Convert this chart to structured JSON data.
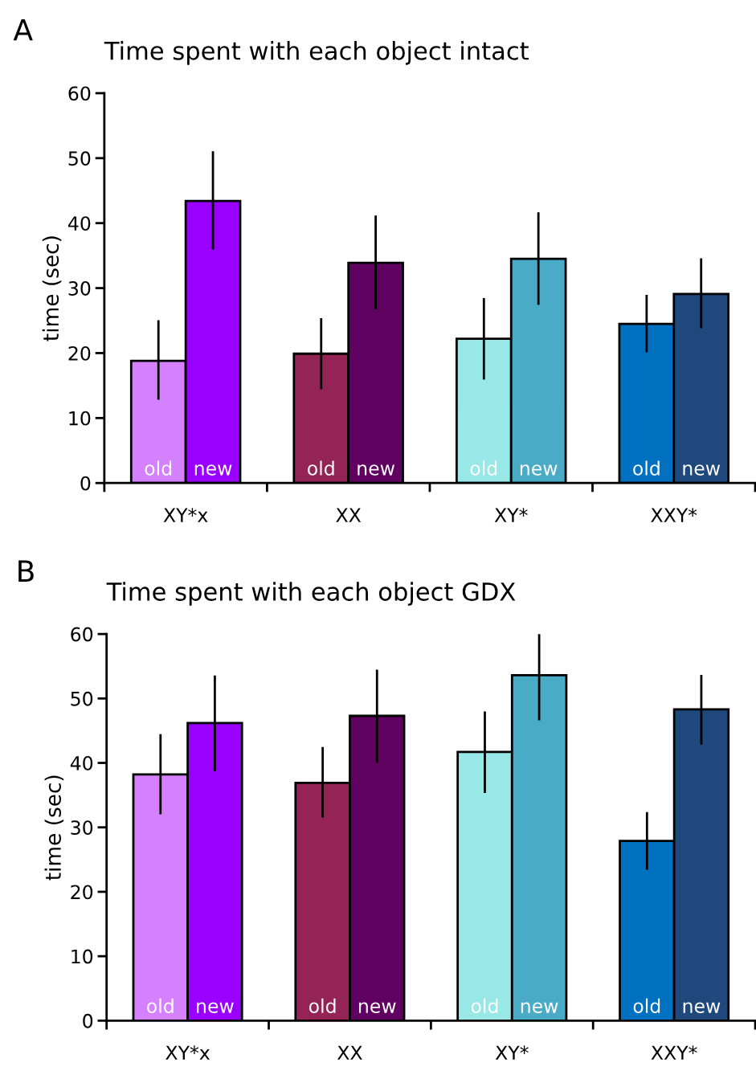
{
  "chart_data": [
    {
      "type": "bar",
      "title": "Time spent with each object intact",
      "ylabel": "time (sec)",
      "annotations": [
        "A"
      ],
      "categories": [
        "XY*x",
        "XX",
        "XY*",
        "XXY*"
      ],
      "ylim": [
        0,
        60
      ],
      "yticks": [
        0,
        10,
        20,
        30,
        40,
        50,
        60
      ],
      "grid": false,
      "legend": false,
      "series": [
        {
          "name": "old",
          "colors": [
            "#d580ff",
            "#952456",
            "#99e8e8",
            "#0070c0"
          ],
          "values": [
            18.8,
            19.9,
            22.2,
            24.5
          ],
          "errors": [
            [
              13.0,
              24.9
            ],
            [
              14.6,
              25.2
            ],
            [
              16.1,
              28.3
            ],
            [
              20.3,
              28.8
            ]
          ]
        },
        {
          "name": "new",
          "colors": [
            "#9900ff",
            "#600060",
            "#4aabc6",
            "#1f497d"
          ],
          "values": [
            43.4,
            33.9,
            34.5,
            29.1
          ],
          "errors": [
            [
              36.1,
              50.9
            ],
            [
              26.9,
              41.0
            ],
            [
              27.6,
              41.5
            ],
            [
              24.0,
              34.4
            ]
          ]
        }
      ]
    },
    {
      "type": "bar",
      "title": "Time spent with each object GDX",
      "ylabel": "time (sec)",
      "annotations": [
        "B"
      ],
      "categories": [
        "XY*x",
        "XX",
        "XY*",
        "XXY*"
      ],
      "ylim": [
        0,
        60
      ],
      "yticks": [
        0,
        10,
        20,
        30,
        40,
        50,
        60
      ],
      "grid": false,
      "legend": false,
      "series": [
        {
          "name": "old",
          "colors": [
            "#d580ff",
            "#952456",
            "#99e8e8",
            "#0070c0"
          ],
          "values": [
            38.2,
            36.9,
            41.7,
            27.9
          ],
          "errors": [
            [
              32.2,
              44.3
            ],
            [
              31.7,
              42.3
            ],
            [
              35.5,
              47.8
            ],
            [
              23.6,
              32.2
            ]
          ]
        },
        {
          "name": "new",
          "colors": [
            "#9900ff",
            "#600060",
            "#4aabc6",
            "#1f497d"
          ],
          "values": [
            46.2,
            47.3,
            53.6,
            48.3
          ],
          "errors": [
            [
              38.9,
              53.4
            ],
            [
              40.2,
              54.3
            ],
            [
              46.8,
              60.0
            ],
            [
              43.0,
              53.5
            ]
          ]
        }
      ]
    }
  ]
}
